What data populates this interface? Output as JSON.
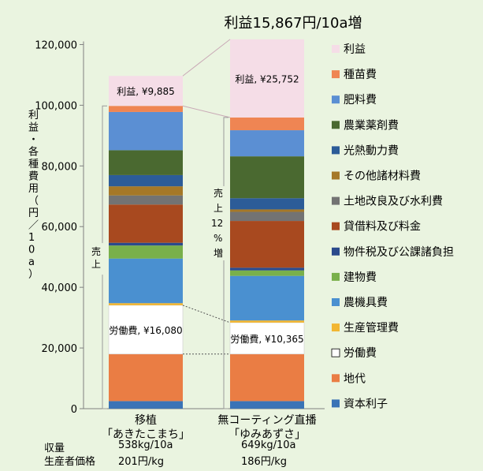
{
  "chart_data": {
    "type": "bar",
    "stacked": true,
    "title": "利益15,867円/10a増",
    "ylabel": "利益・各種費用（円／10a）",
    "ylim": [
      0,
      130000
    ],
    "yticks": [
      0,
      20000,
      40000,
      60000,
      80000,
      100000,
      120000
    ],
    "ytick_labels": [
      "0",
      "20,000",
      "40,000",
      "60,000",
      "80,000",
      "100,000",
      "120,000"
    ],
    "grid": false,
    "legend_position": "right",
    "categories": [
      "移植\n「あきたこまち」",
      "無コーティング直播\n「ゆみあずさ」"
    ],
    "category_lines": [
      [
        "移植",
        "「あきたこまち」"
      ],
      [
        "無コーティング直播",
        "「ゆみあずさ」"
      ]
    ],
    "series": [
      {
        "name": "資本利子",
        "color": "#3a73b6",
        "values": [
          2500,
          2500
        ]
      },
      {
        "name": "地代",
        "color": "#ea7d44",
        "values": [
          15500,
          15500
        ]
      },
      {
        "name": "労働費",
        "color": "#ffffff",
        "values": [
          16080,
          10365
        ]
      },
      {
        "name": "生産管理費",
        "color": "#f2b632",
        "values": [
          700,
          700
        ]
      },
      {
        "name": "農機具費",
        "color": "#4a90d0",
        "values": [
          14700,
          14700
        ]
      },
      {
        "name": "建物費",
        "color": "#79b04a",
        "values": [
          4300,
          1800
        ]
      },
      {
        "name": "物件税及び公課諸負担",
        "color": "#2b4a8c",
        "values": [
          900,
          900
        ]
      },
      {
        "name": "貸借料及び料金",
        "color": "#a8491f",
        "values": [
          12600,
          15400
        ]
      },
      {
        "name": "土地改良及び水利費",
        "color": "#737373",
        "values": [
          3000,
          3000
        ]
      },
      {
        "name": "その他諸材料費",
        "color": "#a57828",
        "values": [
          3000,
          800
        ]
      },
      {
        "name": "光熱動力費",
        "color": "#2c5c98",
        "values": [
          3700,
          3700
        ]
      },
      {
        "name": "農業薬剤費",
        "color": "#4a6930",
        "values": [
          8200,
          13800
        ]
      },
      {
        "name": "肥料費",
        "color": "#5b8fd3",
        "values": [
          12600,
          8600
        ]
      },
      {
        "name": "種苗費",
        "color": "#ef8553",
        "values": [
          2000,
          4200
        ]
      },
      {
        "name": "利益",
        "color": "#f5dde7",
        "values": [
          9885,
          25752
        ]
      }
    ],
    "annotations": {
      "profit_labels": [
        "利益, ¥9,885",
        "利益, ¥25,752"
      ],
      "labor_labels": [
        "労働費, ¥16,080",
        "労働費, ¥10,365"
      ],
      "sales_label_left": "売上",
      "sales_label_right": [
        "売",
        "上",
        "12",
        "%",
        "増"
      ]
    }
  },
  "footer": {
    "yield_label": "収量",
    "price_label": "生産者価格",
    "yield_values": [
      "538kg/10a",
      "649kg/10a"
    ],
    "price_values": [
      "201円/kg",
      "186円/kg"
    ]
  }
}
